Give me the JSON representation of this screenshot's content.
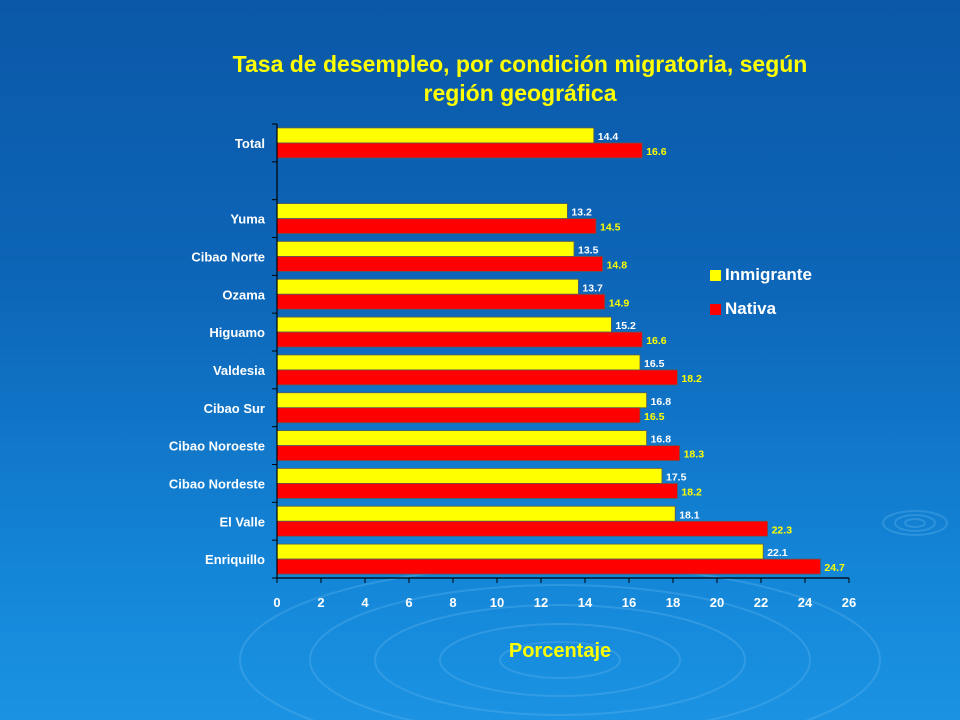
{
  "chart_data": {
    "type": "bar",
    "orientation": "horizontal",
    "title": "Tasa de desempleo, por condición migratoria, según región geográfica",
    "title_lines": [
      "Tasa de desempleo, por condición migratoria, según",
      "región geográfica"
    ],
    "xlabel": "Porcentaje",
    "ylabel": "",
    "xlim": [
      0,
      26
    ],
    "x_ticks": [
      "0",
      "2",
      "4",
      "6",
      "8",
      "10",
      "12",
      "14",
      "16",
      "18",
      "20",
      "22",
      "24",
      "26"
    ],
    "categories": [
      "Total",
      "",
      "Yuma",
      "Cibao Norte",
      "Ozama",
      "Higuamo",
      "Valdesia",
      "Cibao Sur",
      "Cibao Noroeste",
      "Cibao Nordeste",
      "El Valle",
      "Enriquillo"
    ],
    "series": [
      {
        "name": "Inmigrante",
        "color": "#ffff00",
        "values": [
          14.4,
          null,
          13.2,
          13.5,
          13.7,
          15.2,
          16.5,
          16.8,
          16.8,
          17.5,
          18.1,
          22.1
        ],
        "labels": [
          "14.4",
          "",
          "13.2",
          "13.5",
          "13.7",
          "15.2",
          "16.5",
          "16.8",
          "16.8",
          "17.5",
          "18.1",
          "22.1"
        ]
      },
      {
        "name": "Nativa",
        "color": "#ff0000",
        "values": [
          16.6,
          null,
          14.5,
          14.8,
          14.9,
          16.6,
          18.2,
          16.5,
          18.3,
          18.2,
          22.3,
          24.7
        ],
        "labels": [
          "16.6",
          "",
          "14.5",
          "14.8",
          "14.9",
          "16.6",
          "18.2",
          "16.5",
          "18.3",
          "18.2",
          "22.3",
          "24.7"
        ]
      }
    ],
    "grid": false,
    "legend_position": "right"
  }
}
